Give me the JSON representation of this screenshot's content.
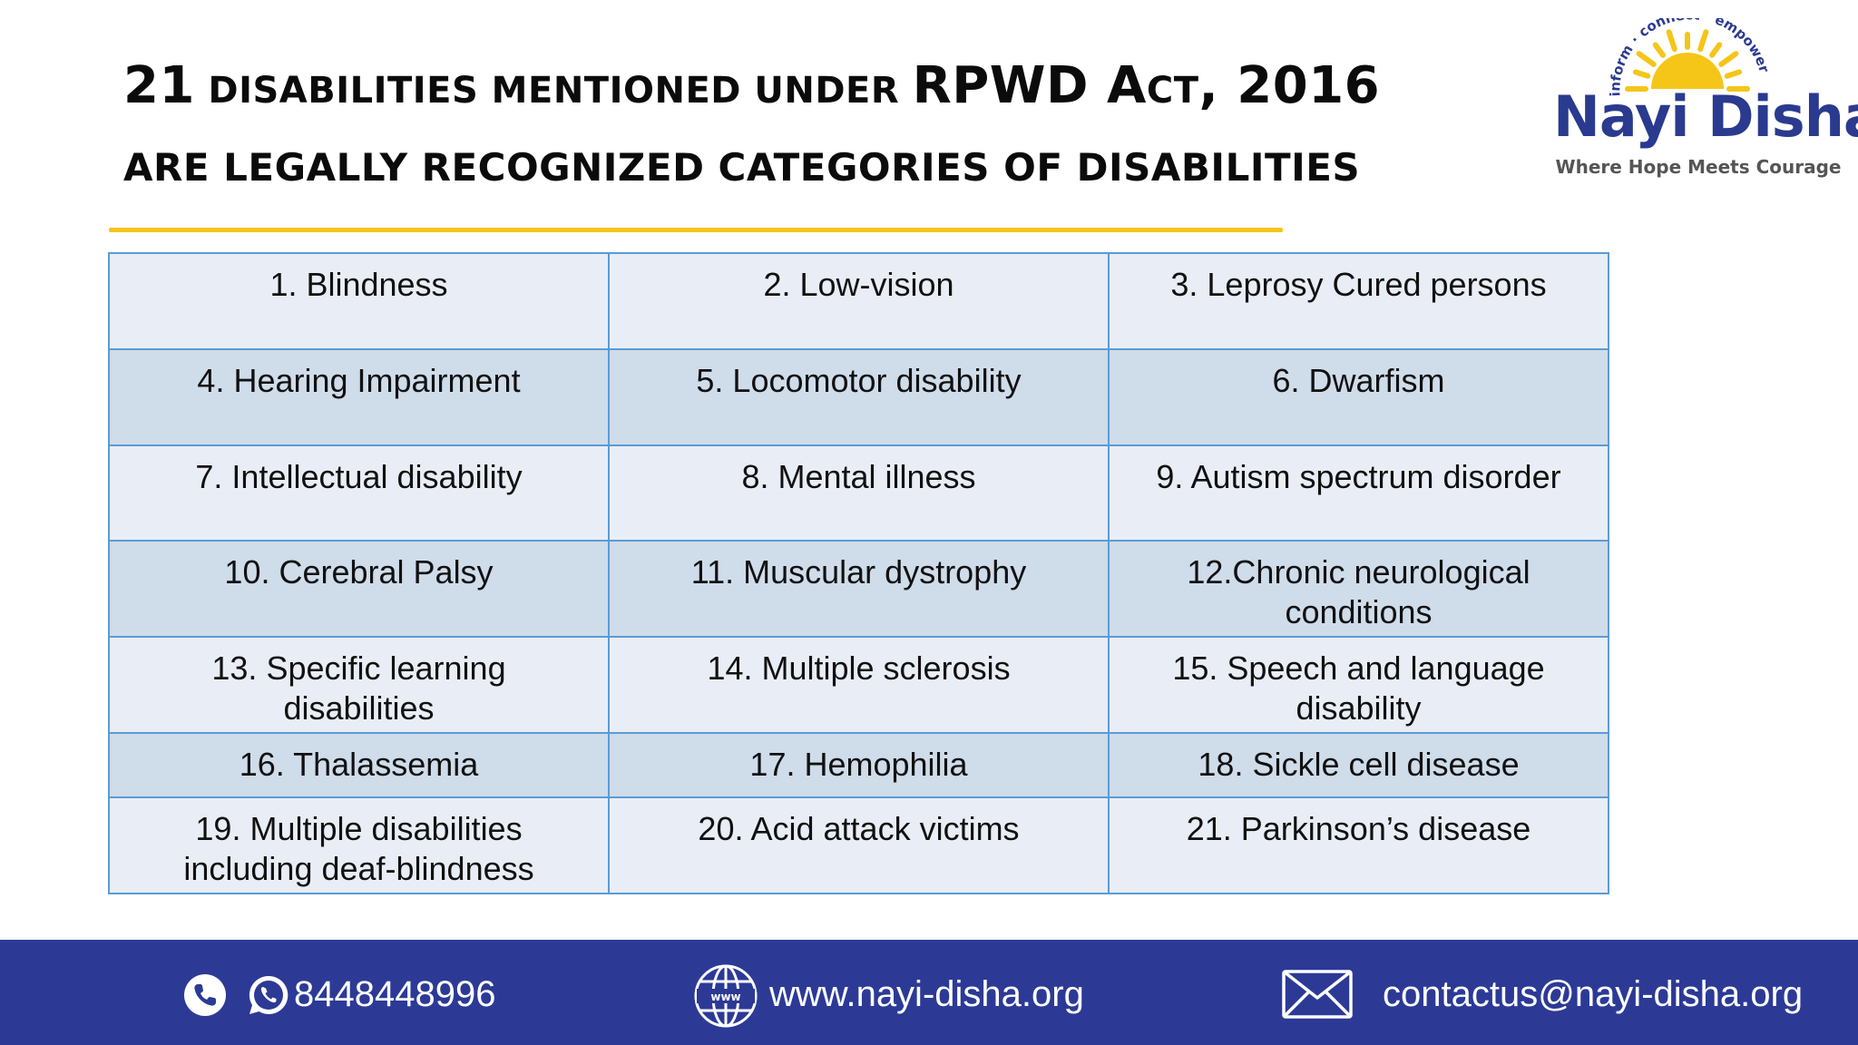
{
  "header": {
    "title_line1_parts": [
      "21",
      " DISABILITIES MENTIONED UNDER ",
      "RPWD A",
      "CT",
      ", 2016"
    ],
    "title_line2": "ARE LEGALLY RECOGNIZED CATEGORIES OF DISABILITIES"
  },
  "logo": {
    "arc_text": "inform · connect · empower",
    "name": "Nayi Disha",
    "tagline": "Where Hope Meets Courage",
    "name_color": "#2a3a8f",
    "sun_color": "#f5c518"
  },
  "disabilities": {
    "rows": [
      [
        "1. Blindness",
        "2. Low-vision",
        "3. Leprosy Cured persons"
      ],
      [
        "4. Hearing Impairment",
        "5. Locomotor disability",
        "6. Dwarfism"
      ],
      [
        "7. Intellectual disability",
        "8. Mental illness",
        "9. Autism spectrum disorder"
      ],
      [
        "10. Cerebral Palsy",
        "11. Muscular dystrophy",
        "12.Chronic neurological conditions"
      ],
      [
        "13. Specific learning disabilities",
        "14. Multiple sclerosis",
        "15. Speech and language disability"
      ],
      [
        "16. Thalassemia",
        "17. Hemophilia",
        "18. Sickle cell disease"
      ],
      [
        "19. Multiple disabilities including deaf-blindness",
        "20. Acid attack victims",
        "21. Parkinson’s disease"
      ]
    ]
  },
  "footer": {
    "phone": "8448448996",
    "website": "www.nayi-disha.org",
    "email": "contactus@nayi-disha.org",
    "background_color": "#2c3a96",
    "icons": [
      "phone-icon",
      "whatsapp-icon",
      "globe-icon",
      "envelope-icon"
    ]
  },
  "colors": {
    "accent_rule": "#f5c518",
    "table_border": "#5b9bd5",
    "row_light": "#e9eef6",
    "row_dark": "#cfdcea"
  }
}
